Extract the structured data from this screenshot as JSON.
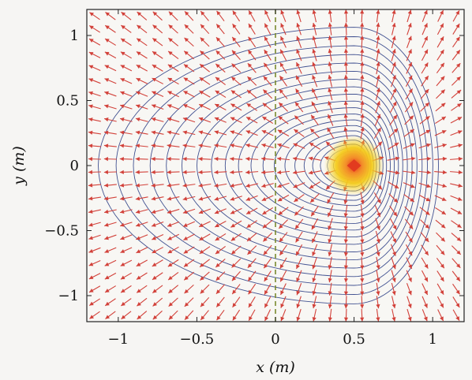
{
  "chart_data": {
    "type": "vector_field_contour",
    "xlabel": "x (m)",
    "ylabel": "y (m)",
    "xlim": [
      -1.2,
      1.2
    ],
    "ylim": [
      -1.2,
      1.2
    ],
    "xticks": [
      -1,
      -0.5,
      0,
      0.5,
      1
    ],
    "xtick_labels": [
      "−1",
      "−0.5",
      "0",
      "0.5",
      "1"
    ],
    "yticks": [
      -1,
      -0.5,
      0,
      0.5,
      1
    ],
    "ytick_labels": [
      "−1",
      "−0.5",
      "0",
      "0.5",
      "1"
    ],
    "source_point": [
      0.5,
      0
    ],
    "boundary_x": 0,
    "quiver_grid_step": 0.1,
    "contour_level_count": 24,
    "colors": {
      "arrows": "#d2413a",
      "contours": "#2e3f86",
      "boundary": "#7a8a2e",
      "source_core": "#e23b1f",
      "source_glow": "#f5c51a",
      "frame": "#222222",
      "background": "#f6f5f3"
    }
  }
}
